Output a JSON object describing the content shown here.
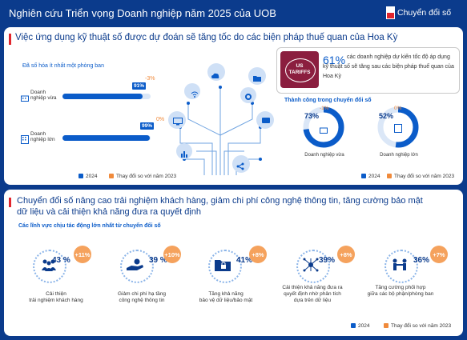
{
  "header": {
    "title": "Nghiên cứu Triển vọng Doanh nghiệp năm 2025 của UOB",
    "right_label": "Chuyển đổi số"
  },
  "section1": {
    "heading": "Việc ứng dụng kỹ thuật số được dự đoán sẽ tăng tốc do các biện pháp thuế quan của Hoa Kỳ",
    "left_subtitle": "Đã số hóa ít nhất một phòng ban",
    "bars": [
      {
        "label": "Doanh nghiệp vừa",
        "value_pct": 91,
        "value_label": "91%",
        "change_label": "-3%"
      },
      {
        "label": "Doanh nghiệp lớn",
        "value_pct": 99,
        "value_label": "99%",
        "change_label": "0%"
      }
    ],
    "tariff_stamp": "US TARIFFS",
    "tariff_pct": "61%",
    "tariff_text": "các doanh nghiệp dự kiến tốc độ áp dụng kỹ thuật số sẽ tăng sau các biện pháp thuế quan của Hoa Kỳ",
    "success_title": "Thành công trong chuyển đổi số",
    "donuts": [
      {
        "value_pct": 73,
        "value_label": "73%",
        "change_label": "-1%",
        "label": "Doanh nghiệp vừa"
      },
      {
        "value_pct": 52,
        "value_label": "52%",
        "change_label": "0%",
        "label": "Doanh nghiệp lớn"
      }
    ],
    "legend_2024": "2024",
    "legend_change": "Thay đổi so với năm 2023"
  },
  "section2": {
    "heading_line1": "Chuyển đổi số nâng cao trải nghiệm khách hàng, giảm chi phí công nghệ thông tin, tăng cường bảo mật",
    "heading_line2": "dữ liệu và cải thiện khả năng đưa ra quyết định",
    "subtitle": "Các lĩnh vực chịu tác động lớn nhất từ chuyển đổi số",
    "items": [
      {
        "pct": "43 %",
        "change": "+11%",
        "label1": "Cải thiện",
        "label2": "trải nghiệm khách hàng",
        "label3": "",
        "icon": "people-icon"
      },
      {
        "pct": "39 %",
        "change": "+10%",
        "label1": "Giảm chi phí hạ tầng",
        "label2": "công nghệ thông tin",
        "label3": "",
        "icon": "hand-coin-icon"
      },
      {
        "pct": "41%",
        "change": "+8%",
        "label1": "Tăng khả năng",
        "label2": "bảo vệ dữ liệu/bảo mật",
        "label3": "",
        "icon": "lock-folder-icon"
      },
      {
        "pct": "39%",
        "change": "+8%",
        "label1": "Cải thiện khả năng đưa ra",
        "label2": "quyết định nhờ phân tích",
        "label3": "dựa trên dữ liệu",
        "icon": "network-icon"
      },
      {
        "pct": "36%",
        "change": "+7%",
        "label1": "Tăng cường phối hợp",
        "label2": "giữa các bộ phận/phòng ban",
        "label3": "",
        "icon": "team-icon"
      }
    ],
    "legend_2024": "2024",
    "legend_change": "Thay đổi so với năm 2023"
  },
  "colors": {
    "navy": "#0b3b8c",
    "blue": "#0b5cc9",
    "orange": "#f08a3b",
    "red": "#e1262d",
    "tariff_bg": "#8b1e3f"
  }
}
